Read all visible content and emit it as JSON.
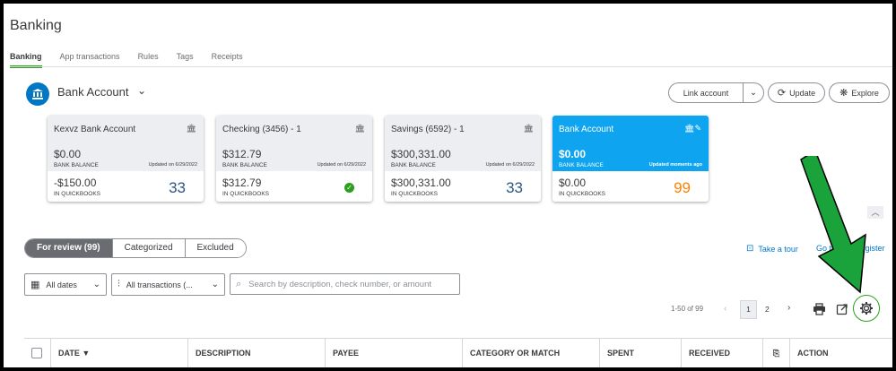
{
  "page": {
    "title": "Banking"
  },
  "tabs": [
    {
      "label": "Banking",
      "active": true
    },
    {
      "label": "App transactions"
    },
    {
      "label": "Rules"
    },
    {
      "label": "Tags"
    },
    {
      "label": "Receipts"
    }
  ],
  "account_selector": {
    "label": "Bank Account"
  },
  "header_buttons": {
    "link_account": "Link account",
    "update": "Update",
    "explore": "Explore"
  },
  "cards": [
    {
      "name": "Kexvz Bank Account",
      "bank_balance": "$0.00",
      "bank_balance_label": "BANK BALANCE",
      "updated": "Updated on 6/29/2022",
      "qb_balance": "-$150.00",
      "qb_label": "IN QUICKBOOKS",
      "count": "33"
    },
    {
      "name": "Checking (3456) - 1",
      "bank_balance": "$312.79",
      "bank_balance_label": "BANK BALANCE",
      "updated": "Updated on 6/29/2022",
      "qb_balance": "$312.79",
      "qb_label": "IN QUICKBOOKS",
      "status": "reconciled"
    },
    {
      "name": "Savings (6592) - 1",
      "bank_balance": "$300,331.00",
      "bank_balance_label": "BANK BALANCE",
      "updated": "Updated on 6/29/2022",
      "qb_balance": "$300,331.00",
      "qb_label": "IN QUICKBOOKS",
      "count": "33"
    },
    {
      "name": "Bank Account",
      "bank_balance": "$0.00",
      "bank_balance_label": "BANK BALANCE",
      "updated": "Updated moments ago",
      "qb_balance": "$0.00",
      "qb_label": "IN QUICKBOOKS",
      "count": "99",
      "selected": true
    }
  ],
  "review_tabs": [
    {
      "label": "For review (99)",
      "active": true
    },
    {
      "label": "Categorized"
    },
    {
      "label": "Excluded"
    }
  ],
  "links": {
    "tour": "Take a tour",
    "register": "Go to bank register"
  },
  "filters": {
    "dates": "All dates",
    "transactions": "All transactions (...",
    "search_placeholder": "Search by description, check number, or amount"
  },
  "pagination": {
    "range": "1-50 of 99",
    "page1": "1",
    "page2": "2"
  },
  "table": {
    "columns": [
      "DATE ▼",
      "DESCRIPTION",
      "PAYEE",
      "CATEGORY OR MATCH",
      "SPENT",
      "RECEIVED",
      "",
      "ACTION"
    ]
  },
  "colors": {
    "accent_green": "#2ca01c",
    "selected_card": "#0ea4ef",
    "count_orange": "#ff8000",
    "link_blue": "#0077c5",
    "annotation_arrow": "#19a33a"
  }
}
